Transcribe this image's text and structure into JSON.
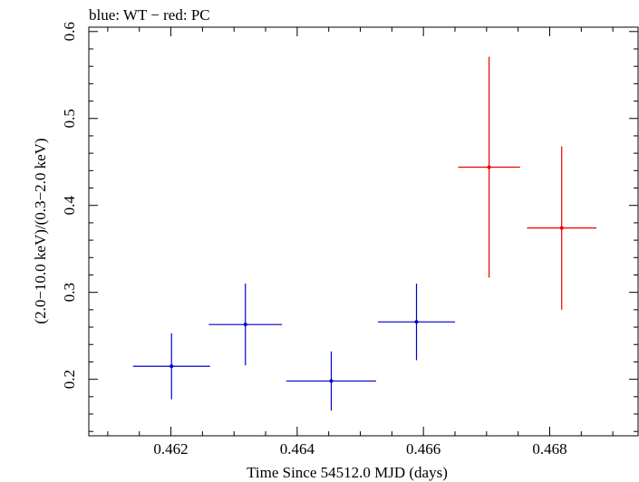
{
  "chart_data": {
    "type": "scatter",
    "title": "blue: WT − red: PC",
    "xlabel": "Time Since 54512.0 MJD (days)",
    "ylabel": "(2.0−10.0 keV)/(0.3−2.0 keV)",
    "xlim": [
      0.4607,
      0.4694
    ],
    "ylim": [
      0.135,
      0.605
    ],
    "xticks": [
      0.462,
      0.464,
      0.466,
      0.468
    ],
    "xtick_labels": [
      "0.462",
      "0.464",
      "0.466",
      "0.468"
    ],
    "yticks": [
      0.2,
      0.3,
      0.4,
      0.5,
      0.6
    ],
    "ytick_labels": [
      "0.2",
      "0.3",
      "0.4",
      "0.5",
      "0.6"
    ],
    "grid": false,
    "series": [
      {
        "name": "WT",
        "color": "#0000cc",
        "points": [
          {
            "x": 0.46201,
            "xerr": 0.00061,
            "y": 0.215,
            "yerr_low": 0.038,
            "yerr_high": 0.038
          },
          {
            "x": 0.46318,
            "xerr": 0.00058,
            "y": 0.263,
            "yerr_low": 0.047,
            "yerr_high": 0.047
          },
          {
            "x": 0.46454,
            "xerr": 0.00071,
            "y": 0.198,
            "yerr_low": 0.034,
            "yerr_high": 0.034
          },
          {
            "x": 0.46589,
            "xerr": 0.00061,
            "y": 0.266,
            "yerr_low": 0.044,
            "yerr_high": 0.044
          }
        ]
      },
      {
        "name": "PC",
        "color": "#ee0000",
        "points": [
          {
            "x": 0.46704,
            "xerr": 0.00049,
            "y": 0.444,
            "yerr_low": 0.127,
            "yerr_high": 0.127
          },
          {
            "x": 0.46819,
            "xerr": 0.00055,
            "y": 0.374,
            "yerr_low": 0.094,
            "yerr_high": 0.094
          }
        ]
      }
    ]
  }
}
